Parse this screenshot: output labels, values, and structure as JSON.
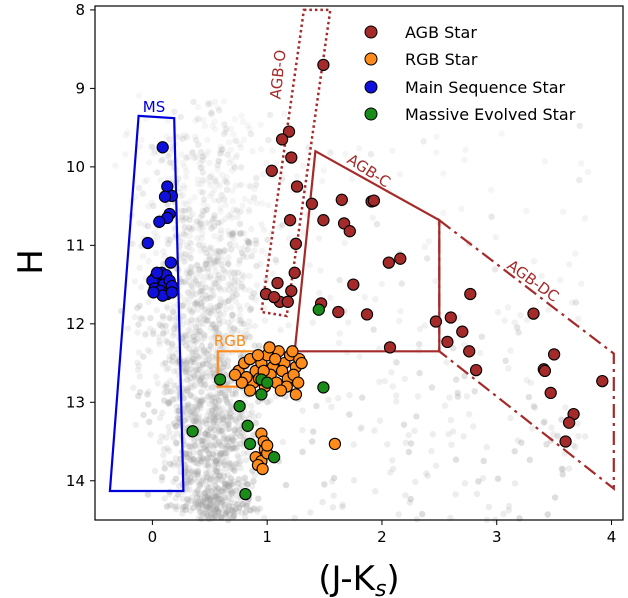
{
  "chart_data": {
    "type": "scatter",
    "xlabel": "(J-K",
    "xlabel_sub": "s",
    "xlabel_close": ")",
    "ylabel": "H",
    "xlim": [
      -0.5,
      4.1
    ],
    "ylim": [
      14.5,
      7.95
    ],
    "y_inverted": true,
    "x_ticks": [
      "0",
      "1",
      "2",
      "3",
      "4"
    ],
    "y_ticks": [
      "8",
      "9",
      "10",
      "11",
      "12",
      "13",
      "14"
    ],
    "legend_position": "top-right",
    "series": [
      {
        "name": "AGB Star",
        "color": "#a52a2a",
        "points": [
          [
            1.49,
            8.7
          ],
          [
            1.19,
            9.55
          ],
          [
            1.13,
            9.65
          ],
          [
            1.21,
            9.88
          ],
          [
            1.26,
            10.25
          ],
          [
            1.04,
            10.05
          ],
          [
            1.65,
            10.42
          ],
          [
            1.39,
            10.47
          ],
          [
            1.2,
            10.68
          ],
          [
            1.49,
            10.68
          ],
          [
            1.67,
            10.72
          ],
          [
            1.72,
            10.82
          ],
          [
            1.91,
            10.44
          ],
          [
            1.93,
            10.43
          ],
          [
            1.25,
            10.98
          ],
          [
            2.06,
            11.22
          ],
          [
            2.16,
            11.17
          ],
          [
            1.75,
            11.5
          ],
          [
            1.24,
            11.35
          ],
          [
            1.09,
            11.48
          ],
          [
            1.11,
            11.72
          ],
          [
            0.99,
            11.62
          ],
          [
            1.21,
            11.58
          ],
          [
            1.06,
            11.66
          ],
          [
            1.18,
            11.72
          ],
          [
            1.62,
            11.85
          ],
          [
            1.47,
            11.74
          ],
          [
            1.87,
            11.88
          ],
          [
            2.6,
            11.92
          ],
          [
            2.47,
            11.97
          ],
          [
            2.7,
            12.1
          ],
          [
            2.77,
            11.62
          ],
          [
            3.32,
            11.87
          ],
          [
            2.07,
            12.3
          ],
          [
            2.57,
            12.23
          ],
          [
            2.76,
            12.35
          ],
          [
            2.82,
            12.59
          ],
          [
            3.5,
            12.39
          ],
          [
            3.41,
            12.58
          ],
          [
            3.42,
            12.6
          ],
          [
            3.47,
            12.88
          ],
          [
            3.92,
            12.73
          ],
          [
            3.67,
            13.15
          ],
          [
            3.63,
            13.26
          ],
          [
            3.6,
            13.5
          ]
        ]
      },
      {
        "name": "RGB Star",
        "color": "#ff8c1a",
        "points": [
          [
            0.75,
            12.6
          ],
          [
            0.8,
            12.5
          ],
          [
            0.85,
            12.45
          ],
          [
            0.9,
            12.6
          ],
          [
            0.95,
            12.5
          ],
          [
            1.0,
            12.4
          ],
          [
            1.05,
            12.55
          ],
          [
            1.1,
            12.35
          ],
          [
            1.15,
            12.5
          ],
          [
            1.2,
            12.4
          ],
          [
            1.25,
            12.55
          ],
          [
            1.28,
            12.45
          ],
          [
            0.88,
            12.75
          ],
          [
            0.93,
            12.7
          ],
          [
            0.98,
            12.8
          ],
          [
            1.03,
            12.65
          ],
          [
            1.08,
            12.75
          ],
          [
            1.13,
            12.6
          ],
          [
            1.18,
            12.7
          ],
          [
            1.23,
            12.65
          ],
          [
            0.82,
            12.68
          ],
          [
            0.97,
            12.6
          ],
          [
            1.07,
            12.45
          ],
          [
            1.17,
            12.8
          ],
          [
            1.27,
            12.75
          ],
          [
            0.92,
            12.4
          ],
          [
            1.12,
            12.85
          ],
          [
            1.02,
            12.3
          ],
          [
            0.95,
            13.4
          ],
          [
            0.97,
            13.5
          ],
          [
            0.98,
            13.6
          ],
          [
            0.9,
            13.7
          ],
          [
            0.95,
            13.75
          ],
          [
            1.0,
            13.65
          ],
          [
            0.92,
            13.8
          ],
          [
            0.96,
            13.85
          ],
          [
            1.0,
            13.55
          ],
          [
            0.85,
            12.85
          ],
          [
            0.78,
            12.75
          ],
          [
            1.59,
            13.53
          ],
          [
            0.72,
            12.65
          ],
          [
            1.22,
            12.35
          ],
          [
            1.25,
            12.9
          ],
          [
            1.3,
            12.5
          ]
        ]
      },
      {
        "name": "Main Sequence Star",
        "color": "#1010dd",
        "points": [
          [
            0.09,
            9.75
          ],
          [
            0.13,
            10.25
          ],
          [
            0.17,
            10.37
          ],
          [
            0.11,
            10.38
          ],
          [
            0.15,
            10.6
          ],
          [
            0.13,
            10.65
          ],
          [
            0.06,
            10.7
          ],
          [
            -0.04,
            10.97
          ],
          [
            0.08,
            11.35
          ],
          [
            0.16,
            11.22
          ],
          [
            0.12,
            11.38
          ],
          [
            0.03,
            11.4
          ],
          [
            0.05,
            11.5
          ],
          [
            0.1,
            11.5
          ],
          [
            0.15,
            11.45
          ],
          [
            0.0,
            11.45
          ],
          [
            0.02,
            11.55
          ],
          [
            0.07,
            11.58
          ],
          [
            0.13,
            11.62
          ],
          [
            0.17,
            11.52
          ],
          [
            0.09,
            11.64
          ],
          [
            0.01,
            11.6
          ],
          [
            0.04,
            11.35
          ],
          [
            0.17,
            11.6
          ]
        ]
      },
      {
        "name": "Massive Evolved Star",
        "color": "#1a8c1a",
        "points": [
          [
            1.45,
            11.82
          ],
          [
            0.59,
            12.71
          ],
          [
            0.95,
            12.71
          ],
          [
            0.95,
            12.9
          ],
          [
            0.76,
            13.05
          ],
          [
            0.35,
            13.37
          ],
          [
            0.83,
            13.3
          ],
          [
            0.85,
            13.53
          ],
          [
            1.06,
            13.7
          ],
          [
            1.49,
            12.81
          ],
          [
            0.81,
            14.17
          ],
          [
            1.0,
            12.75
          ]
        ]
      }
    ],
    "regions": [
      {
        "label": "MS",
        "color": "#0000dd",
        "style": "solid",
        "vertices": [
          [
            -0.12,
            9.35
          ],
          [
            0.19,
            9.38
          ],
          [
            0.27,
            14.13
          ],
          [
            -0.37,
            14.13
          ]
        ]
      },
      {
        "label": "AGB-O",
        "color": "#a52a2a",
        "style": "dotted",
        "vertices": [
          [
            1.32,
            8.0
          ],
          [
            1.55,
            8.0
          ],
          [
            1.17,
            11.9
          ],
          [
            0.95,
            11.85
          ]
        ]
      },
      {
        "label": "AGB-C",
        "color": "#a52a2a",
        "style": "solid",
        "vertices": [
          [
            1.42,
            9.8
          ],
          [
            2.5,
            10.68
          ],
          [
            2.5,
            12.35
          ],
          [
            1.24,
            12.35
          ]
        ]
      },
      {
        "label": "AGB-DC",
        "color": "#a52a2a",
        "style": "dashdot",
        "vertices": [
          [
            2.5,
            10.68
          ],
          [
            4.02,
            12.38
          ],
          [
            4.02,
            14.1
          ],
          [
            2.5,
            12.35
          ]
        ]
      },
      {
        "label": "RGB",
        "color": "#ff8c1a",
        "style": "solid",
        "vertices": [
          [
            0.9,
            12.35
          ],
          [
            0.57,
            12.35
          ],
          [
            0.57,
            12.8
          ],
          [
            0.9,
            12.8
          ]
        ]
      }
    ]
  },
  "legend": [
    {
      "label": "AGB Star",
      "color": "#a52a2a"
    },
    {
      "label": "RGB Star",
      "color": "#ff8c1a"
    },
    {
      "label": "Main Sequence Star",
      "color": "#1010dd"
    },
    {
      "label": "Massive Evolved Star",
      "color": "#1a8c1a"
    }
  ],
  "region_labels": {
    "ms": "MS",
    "agb_o": "AGB-O",
    "agb_c": "AGB-C",
    "agb_dc": "AGB-DC",
    "rgb": "RGB"
  }
}
